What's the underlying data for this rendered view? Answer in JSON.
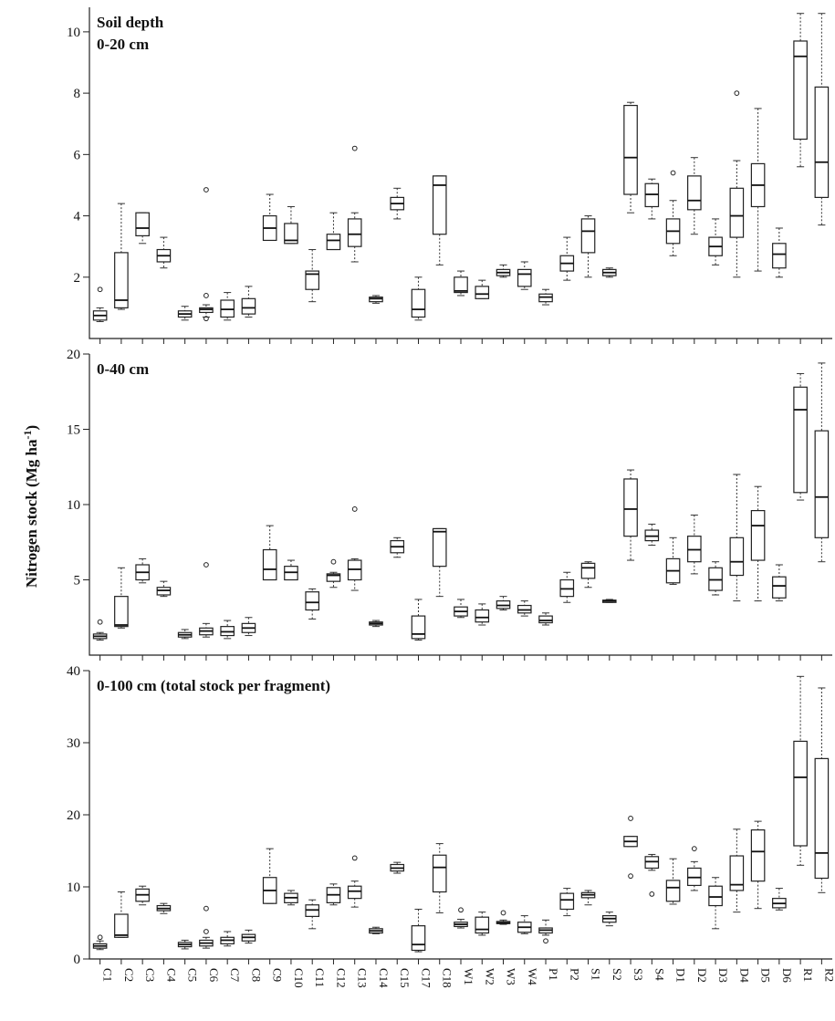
{
  "chart_data": {
    "type": "box",
    "ylabel": "Nitrogen stock (Mg ha",
    "ylabel_sup": "-1",
    "ylabel_close": ")",
    "categories": [
      "C1",
      "C2",
      "C3",
      "C4",
      "C5",
      "C6",
      "C7",
      "C8",
      "C9",
      "C10",
      "C11",
      "C12",
      "C13",
      "C14",
      "C15",
      "C17",
      "C18",
      "W1",
      "W2",
      "W3",
      "W4",
      "P1",
      "P2",
      "S1",
      "S2",
      "S3",
      "S4",
      "D1",
      "D2",
      "D3",
      "D4",
      "D5",
      "D6",
      "R1",
      "R2"
    ],
    "panels": [
      {
        "title_line1": "Soil depth",
        "title_line2": "0-20 cm",
        "ylim": [
          0,
          10.8
        ],
        "yticks": [
          2,
          4,
          6,
          8,
          10
        ],
        "boxes": [
          {
            "min": 0.55,
            "q1": 0.6,
            "med": 0.75,
            "q3": 0.9,
            "max": 1.0,
            "out": [
              1.6
            ]
          },
          {
            "min": 0.95,
            "q1": 1.0,
            "med": 1.25,
            "q3": 2.8,
            "max": 4.4,
            "out": []
          },
          {
            "min": 3.1,
            "q1": 3.35,
            "med": 3.6,
            "q3": 4.1,
            "max": 4.1,
            "out": []
          },
          {
            "min": 2.3,
            "q1": 2.5,
            "med": 2.7,
            "q3": 2.9,
            "max": 3.3,
            "out": []
          },
          {
            "min": 0.6,
            "q1": 0.7,
            "med": 0.8,
            "q3": 0.9,
            "max": 1.05,
            "out": []
          },
          {
            "min": 0.7,
            "q1": 0.85,
            "med": 0.95,
            "q3": 1.0,
            "max": 1.1,
            "out": [
              4.85,
              1.4,
              0.65
            ]
          },
          {
            "min": 0.6,
            "q1": 0.7,
            "med": 0.95,
            "q3": 1.25,
            "max": 1.5,
            "out": []
          },
          {
            "min": 0.7,
            "q1": 0.8,
            "med": 1.0,
            "q3": 1.3,
            "max": 1.7,
            "out": []
          },
          {
            "min": 3.2,
            "q1": 3.2,
            "med": 3.6,
            "q3": 4.0,
            "max": 4.7,
            "out": []
          },
          {
            "min": 3.1,
            "q1": 3.1,
            "med": 3.2,
            "q3": 3.75,
            "max": 4.3,
            "out": []
          },
          {
            "min": 1.2,
            "q1": 1.6,
            "med": 2.1,
            "q3": 2.2,
            "max": 2.9,
            "out": []
          },
          {
            "min": 2.9,
            "q1": 2.9,
            "med": 3.2,
            "q3": 3.4,
            "max": 4.1,
            "out": []
          },
          {
            "min": 2.5,
            "q1": 3.0,
            "med": 3.4,
            "q3": 3.9,
            "max": 4.1,
            "out": [
              6.2
            ]
          },
          {
            "min": 1.15,
            "q1": 1.2,
            "med": 1.3,
            "q3": 1.35,
            "max": 1.4,
            "out": []
          },
          {
            "min": 3.9,
            "q1": 4.2,
            "med": 4.4,
            "q3": 4.6,
            "max": 4.9,
            "out": []
          },
          {
            "min": 0.6,
            "q1": 0.7,
            "med": 0.95,
            "q3": 1.6,
            "max": 2.0,
            "out": []
          },
          {
            "min": 2.4,
            "q1": 3.4,
            "med": 5.0,
            "q3": 5.3,
            "max": 5.3,
            "out": []
          },
          {
            "min": 1.4,
            "q1": 1.5,
            "med": 1.55,
            "q3": 2.0,
            "max": 2.2,
            "out": []
          },
          {
            "min": 1.3,
            "q1": 1.3,
            "med": 1.45,
            "q3": 1.7,
            "max": 1.9,
            "out": []
          },
          {
            "min": 2.0,
            "q1": 2.05,
            "med": 2.15,
            "q3": 2.25,
            "max": 2.4,
            "out": []
          },
          {
            "min": 1.6,
            "q1": 1.7,
            "med": 2.1,
            "q3": 2.25,
            "max": 2.5,
            "out": []
          },
          {
            "min": 1.1,
            "q1": 1.2,
            "med": 1.35,
            "q3": 1.45,
            "max": 1.6,
            "out": []
          },
          {
            "min": 1.9,
            "q1": 2.2,
            "med": 2.45,
            "q3": 2.7,
            "max": 3.3,
            "out": []
          },
          {
            "min": 2.0,
            "q1": 2.8,
            "med": 3.5,
            "q3": 3.9,
            "max": 4.0,
            "out": []
          },
          {
            "min": 2.0,
            "q1": 2.05,
            "med": 2.15,
            "q3": 2.25,
            "max": 2.3,
            "out": []
          },
          {
            "min": 4.1,
            "q1": 4.7,
            "med": 5.9,
            "q3": 7.6,
            "max": 7.7,
            "out": []
          },
          {
            "min": 3.9,
            "q1": 4.3,
            "med": 4.7,
            "q3": 5.05,
            "max": 5.2,
            "out": []
          },
          {
            "min": 2.7,
            "q1": 3.1,
            "med": 3.5,
            "q3": 3.9,
            "max": 4.5,
            "out": [
              5.4
            ]
          },
          {
            "min": 3.4,
            "q1": 4.2,
            "med": 4.5,
            "q3": 5.3,
            "max": 5.9,
            "out": []
          },
          {
            "min": 2.4,
            "q1": 2.7,
            "med": 3.0,
            "q3": 3.3,
            "max": 3.9,
            "out": []
          },
          {
            "min": 2.0,
            "q1": 3.3,
            "med": 4.0,
            "q3": 4.9,
            "max": 5.8,
            "out": [
              8.0
            ]
          },
          {
            "min": 2.2,
            "q1": 4.3,
            "med": 5.0,
            "q3": 5.7,
            "max": 7.5,
            "out": []
          },
          {
            "min": 2.0,
            "q1": 2.3,
            "med": 2.75,
            "q3": 3.1,
            "max": 3.6,
            "out": []
          },
          {
            "min": 5.6,
            "q1": 6.5,
            "med": 9.2,
            "q3": 9.7,
            "max": 10.6,
            "out": []
          },
          {
            "min": 3.7,
            "q1": 4.6,
            "med": 5.75,
            "q3": 8.2,
            "max": 10.6,
            "out": []
          }
        ]
      },
      {
        "title_line1": "0-40 cm",
        "title_line2": "",
        "ylim": [
          0,
          20
        ],
        "yticks": [
          5,
          10,
          15,
          20
        ],
        "boxes": [
          {
            "min": 1.0,
            "q1": 1.1,
            "med": 1.25,
            "q3": 1.4,
            "max": 1.5,
            "out": [
              2.2
            ]
          },
          {
            "min": 1.8,
            "q1": 1.9,
            "med": 2.0,
            "q3": 3.9,
            "max": 5.8,
            "out": []
          },
          {
            "min": 4.8,
            "q1": 5.0,
            "med": 5.5,
            "q3": 6.0,
            "max": 6.4,
            "out": []
          },
          {
            "min": 3.9,
            "q1": 4.0,
            "med": 4.3,
            "q3": 4.5,
            "max": 4.9,
            "out": []
          },
          {
            "min": 1.1,
            "q1": 1.2,
            "med": 1.35,
            "q3": 1.5,
            "max": 1.7,
            "out": []
          },
          {
            "min": 1.2,
            "q1": 1.35,
            "med": 1.6,
            "q3": 1.8,
            "max": 2.1,
            "out": [
              6.0
            ]
          },
          {
            "min": 1.1,
            "q1": 1.3,
            "med": 1.55,
            "q3": 1.9,
            "max": 2.3,
            "out": []
          },
          {
            "min": 1.3,
            "q1": 1.5,
            "med": 1.8,
            "q3": 2.1,
            "max": 2.5,
            "out": []
          },
          {
            "min": 5.0,
            "q1": 5.0,
            "med": 5.7,
            "q3": 7.0,
            "max": 8.6,
            "out": []
          },
          {
            "min": 5.0,
            "q1": 5.0,
            "med": 5.5,
            "q3": 5.9,
            "max": 6.3,
            "out": []
          },
          {
            "min": 2.4,
            "q1": 3.0,
            "med": 3.5,
            "q3": 4.2,
            "max": 4.4,
            "out": []
          },
          {
            "min": 4.5,
            "q1": 4.9,
            "med": 5.3,
            "q3": 5.4,
            "max": 5.5,
            "out": [
              6.2
            ]
          },
          {
            "min": 4.3,
            "q1": 5.0,
            "med": 5.7,
            "q3": 6.3,
            "max": 6.4,
            "out": [
              9.7
            ]
          },
          {
            "min": 1.9,
            "q1": 2.0,
            "med": 2.1,
            "q3": 2.2,
            "max": 2.3,
            "out": []
          },
          {
            "min": 6.5,
            "q1": 6.8,
            "med": 7.2,
            "q3": 7.6,
            "max": 7.8,
            "out": []
          },
          {
            "min": 1.0,
            "q1": 1.1,
            "med": 1.4,
            "q3": 2.6,
            "max": 3.7,
            "out": []
          },
          {
            "min": 3.9,
            "q1": 5.9,
            "med": 8.2,
            "q3": 8.4,
            "max": 8.4,
            "out": []
          },
          {
            "min": 2.5,
            "q1": 2.6,
            "med": 2.9,
            "q3": 3.2,
            "max": 3.7,
            "out": []
          },
          {
            "min": 2.0,
            "q1": 2.2,
            "med": 2.5,
            "q3": 3.0,
            "max": 3.4,
            "out": []
          },
          {
            "min": 3.0,
            "q1": 3.1,
            "med": 3.3,
            "q3": 3.6,
            "max": 3.9,
            "out": []
          },
          {
            "min": 2.6,
            "q1": 2.8,
            "med": 3.0,
            "q3": 3.3,
            "max": 3.6,
            "out": []
          },
          {
            "min": 2.0,
            "q1": 2.15,
            "med": 2.3,
            "q3": 2.6,
            "max": 2.8,
            "out": []
          },
          {
            "min": 3.5,
            "q1": 3.9,
            "med": 4.4,
            "q3": 5.0,
            "max": 5.5,
            "out": []
          },
          {
            "min": 4.5,
            "q1": 5.1,
            "med": 5.8,
            "q3": 6.1,
            "max": 6.2,
            "out": []
          },
          {
            "min": 3.5,
            "q1": 3.5,
            "med": 3.6,
            "q3": 3.65,
            "max": 3.7,
            "out": []
          },
          {
            "min": 6.3,
            "q1": 7.9,
            "med": 9.7,
            "q3": 11.7,
            "max": 12.3,
            "out": []
          },
          {
            "min": 7.3,
            "q1": 7.6,
            "med": 7.9,
            "q3": 8.3,
            "max": 8.7,
            "out": []
          },
          {
            "min": 4.7,
            "q1": 4.8,
            "med": 5.6,
            "q3": 6.4,
            "max": 7.8,
            "out": []
          },
          {
            "min": 5.4,
            "q1": 6.2,
            "med": 7.0,
            "q3": 7.9,
            "max": 9.3,
            "out": []
          },
          {
            "min": 4.0,
            "q1": 4.3,
            "med": 5.0,
            "q3": 5.8,
            "max": 6.2,
            "out": []
          },
          {
            "min": 3.6,
            "q1": 5.3,
            "med": 6.2,
            "q3": 7.8,
            "max": 12.0,
            "out": []
          },
          {
            "min": 3.6,
            "q1": 6.3,
            "med": 8.6,
            "q3": 9.6,
            "max": 11.2,
            "out": []
          },
          {
            "min": 3.6,
            "q1": 3.8,
            "med": 4.6,
            "q3": 5.2,
            "max": 6.0,
            "out": []
          },
          {
            "min": 10.3,
            "q1": 10.8,
            "med": 16.3,
            "q3": 17.8,
            "max": 18.7,
            "out": []
          },
          {
            "min": 6.2,
            "q1": 7.8,
            "med": 10.5,
            "q3": 14.9,
            "max": 19.4,
            "out": []
          }
        ]
      },
      {
        "title_line1": "0-100 cm (total stock per fragment)",
        "title_line2": "",
        "ylim": [
          0,
          40
        ],
        "yticks": [
          0,
          10,
          20,
          30,
          40
        ],
        "boxes": [
          {
            "min": 1.3,
            "q1": 1.5,
            "med": 1.8,
            "q3": 2.1,
            "max": 2.5,
            "out": [
              3.0
            ]
          },
          {
            "min": 3.0,
            "q1": 3.0,
            "med": 3.3,
            "q3": 6.2,
            "max": 9.3,
            "out": []
          },
          {
            "min": 7.5,
            "q1": 8.0,
            "med": 8.9,
            "q3": 9.7,
            "max": 10.1,
            "out": []
          },
          {
            "min": 6.3,
            "q1": 6.7,
            "med": 7.0,
            "q3": 7.4,
            "max": 7.7,
            "out": []
          },
          {
            "min": 1.4,
            "q1": 1.7,
            "med": 2.0,
            "q3": 2.3,
            "max": 2.6,
            "out": []
          },
          {
            "min": 1.5,
            "q1": 1.8,
            "med": 2.2,
            "q3": 2.6,
            "max": 3.0,
            "out": [
              7.0,
              3.8
            ]
          },
          {
            "min": 1.8,
            "q1": 2.1,
            "med": 2.6,
            "q3": 3.0,
            "max": 3.8,
            "out": []
          },
          {
            "min": 2.2,
            "q1": 2.5,
            "med": 3.0,
            "q3": 3.4,
            "max": 4.0,
            "out": []
          },
          {
            "min": 7.7,
            "q1": 7.7,
            "med": 9.5,
            "q3": 11.3,
            "max": 15.3,
            "out": []
          },
          {
            "min": 7.5,
            "q1": 7.8,
            "med": 8.5,
            "q3": 9.1,
            "max": 9.5,
            "out": []
          },
          {
            "min": 4.2,
            "q1": 5.9,
            "med": 6.8,
            "q3": 7.5,
            "max": 8.2,
            "out": []
          },
          {
            "min": 7.5,
            "q1": 7.8,
            "med": 8.9,
            "q3": 9.9,
            "max": 10.4,
            "out": []
          },
          {
            "min": 7.2,
            "q1": 8.4,
            "med": 9.4,
            "q3": 10.1,
            "max": 10.8,
            "out": [
              14.0
            ]
          },
          {
            "min": 3.5,
            "q1": 3.6,
            "med": 3.9,
            "q3": 4.2,
            "max": 4.4,
            "out": []
          },
          {
            "min": 11.9,
            "q1": 12.2,
            "med": 12.6,
            "q3": 13.1,
            "max": 13.4,
            "out": []
          },
          {
            "min": 1.0,
            "q1": 1.2,
            "med": 2.0,
            "q3": 4.6,
            "max": 6.9,
            "out": []
          },
          {
            "min": 6.4,
            "q1": 9.3,
            "med": 12.7,
            "q3": 14.4,
            "max": 16.0,
            "out": []
          },
          {
            "min": 4.3,
            "q1": 4.5,
            "med": 4.8,
            "q3": 5.1,
            "max": 5.5,
            "out": [
              6.8
            ]
          },
          {
            "min": 3.3,
            "q1": 3.6,
            "med": 4.1,
            "q3": 5.8,
            "max": 6.5,
            "out": []
          },
          {
            "min": 4.8,
            "q1": 4.9,
            "med": 5.0,
            "q3": 5.2,
            "max": 5.4,
            "out": [
              6.4
            ]
          },
          {
            "min": 3.5,
            "q1": 3.7,
            "med": 4.4,
            "q3": 5.1,
            "max": 6.0,
            "out": []
          },
          {
            "min": 3.3,
            "q1": 3.6,
            "med": 4.0,
            "q3": 4.3,
            "max": 5.4,
            "out": [
              2.5
            ]
          },
          {
            "min": 6.0,
            "q1": 6.9,
            "med": 8.2,
            "q3": 9.1,
            "max": 9.8,
            "out": []
          },
          {
            "min": 7.5,
            "q1": 8.5,
            "med": 8.9,
            "q3": 9.2,
            "max": 9.5,
            "out": []
          },
          {
            "min": 4.6,
            "q1": 5.1,
            "med": 5.6,
            "q3": 6.0,
            "max": 6.5,
            "out": []
          },
          {
            "min": 15.6,
            "q1": 15.6,
            "med": 16.3,
            "q3": 17.0,
            "max": 17.0,
            "out": [
              19.5,
              11.5
            ]
          },
          {
            "min": 12.3,
            "q1": 12.6,
            "med": 13.5,
            "q3": 14.2,
            "max": 14.5,
            "out": [
              9.0
            ]
          },
          {
            "min": 7.6,
            "q1": 8.0,
            "med": 9.9,
            "q3": 10.9,
            "max": 13.9,
            "out": []
          },
          {
            "min": 9.5,
            "q1": 10.2,
            "med": 11.3,
            "q3": 12.6,
            "max": 13.5,
            "out": [
              15.3
            ]
          },
          {
            "min": 4.2,
            "q1": 7.4,
            "med": 8.6,
            "q3": 10.1,
            "max": 11.3,
            "out": []
          },
          {
            "min": 6.5,
            "q1": 9.5,
            "med": 10.3,
            "q3": 14.3,
            "max": 18.0,
            "out": []
          },
          {
            "min": 7.0,
            "q1": 10.8,
            "med": 14.9,
            "q3": 17.9,
            "max": 19.1,
            "out": []
          },
          {
            "min": 6.8,
            "q1": 7.1,
            "med": 7.7,
            "q3": 8.4,
            "max": 9.8,
            "out": []
          },
          {
            "min": 13.0,
            "q1": 15.7,
            "med": 25.2,
            "q3": 30.2,
            "max": 39.2,
            "out": []
          },
          {
            "min": 9.2,
            "q1": 11.2,
            "med": 14.7,
            "q3": 27.8,
            "max": 37.6,
            "out": []
          }
        ]
      }
    ]
  }
}
